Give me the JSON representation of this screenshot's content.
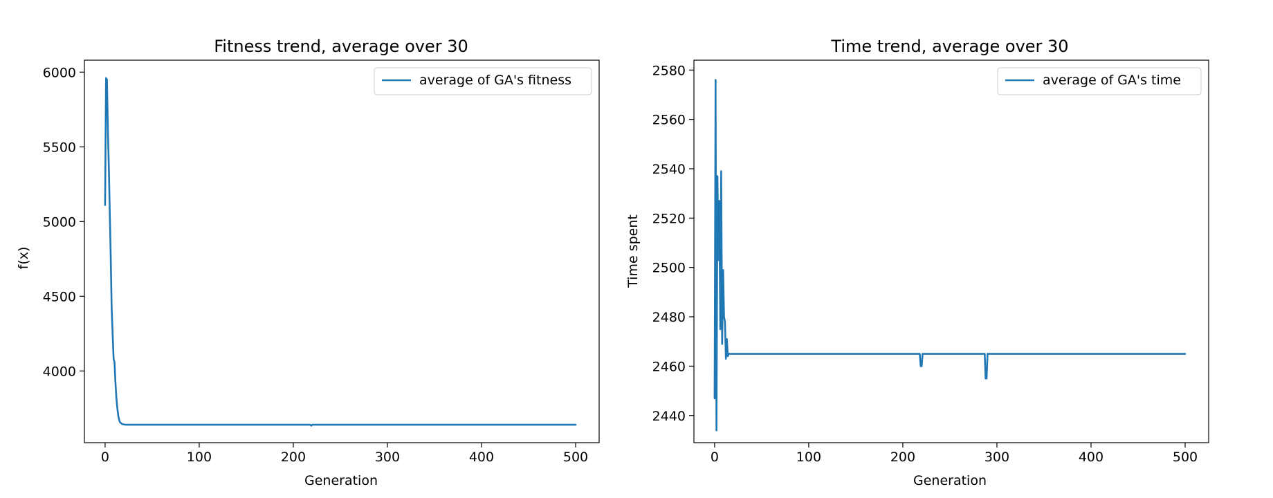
{
  "chart_data": [
    {
      "type": "line",
      "title": "Fitness trend, average over 30",
      "xlabel": "Generation",
      "ylabel": "f(x)",
      "xlim": [
        -22,
        525
      ],
      "ylim": [
        3520,
        6080
      ],
      "xticks": [
        0,
        100,
        200,
        300,
        400,
        500
      ],
      "yticks": [
        4000,
        4500,
        5000,
        5500,
        6000
      ],
      "grid": false,
      "legend_position": "top-right",
      "color": "#1f77b4",
      "series": [
        {
          "name": "average of GA's fitness",
          "x": [
            0,
            1,
            2,
            3,
            4,
            5,
            6,
            7,
            8,
            9,
            10,
            11,
            12,
            13,
            14,
            15,
            16,
            17,
            18,
            19,
            20,
            22,
            24,
            26,
            30,
            50,
            100,
            200,
            218,
            219,
            220,
            221,
            300,
            400,
            500
          ],
          "y": [
            5110,
            5960,
            5950,
            5600,
            5350,
            5050,
            4750,
            4420,
            4250,
            4080,
            4060,
            3920,
            3820,
            3750,
            3700,
            3670,
            3655,
            3650,
            3645,
            3643,
            3642,
            3640,
            3640,
            3640,
            3640,
            3640,
            3640,
            3640,
            3640,
            3634,
            3640,
            3640,
            3640,
            3640,
            3640
          ]
        }
      ]
    },
    {
      "type": "line",
      "title": "Time trend, average over 30",
      "xlabel": "Generation",
      "ylabel": "Time spent",
      "xlim": [
        -22,
        525
      ],
      "ylim": [
        2429,
        2584
      ],
      "xticks": [
        0,
        100,
        200,
        300,
        400,
        500
      ],
      "yticks": [
        2440,
        2460,
        2480,
        2500,
        2520,
        2540,
        2560,
        2580
      ],
      "grid": false,
      "legend_position": "top-right",
      "color": "#1f77b4",
      "series": [
        {
          "name": "average of GA's time",
          "x": [
            0,
            1,
            2,
            3,
            4,
            5,
            6,
            7,
            8,
            9,
            10,
            11,
            12,
            13,
            14,
            15,
            16,
            17,
            18,
            19,
            20,
            21,
            22,
            23,
            24,
            25,
            30,
            50,
            100,
            200,
            218,
            219,
            220,
            221,
            250,
            287,
            288,
            289,
            290,
            300,
            400,
            500
          ],
          "y": [
            2447,
            2576,
            2434,
            2537,
            2503,
            2527,
            2475,
            2539,
            2469,
            2499,
            2480,
            2478,
            2463,
            2471,
            2464,
            2465,
            2465,
            2465,
            2465,
            2465,
            2465,
            2465,
            2465,
            2465,
            2465,
            2465,
            2465,
            2465,
            2465,
            2465,
            2465,
            2460,
            2460,
            2465,
            2465,
            2465,
            2455,
            2455,
            2465,
            2465,
            2465,
            2465
          ]
        }
      ]
    }
  ]
}
